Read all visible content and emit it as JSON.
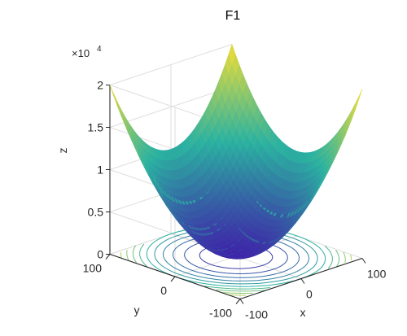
{
  "chart_data": {
    "type": "surface",
    "title": "F1",
    "function": "sum of squares",
    "xlabel": "x",
    "ylabel": "y",
    "zlabel": "z",
    "xlim": [
      -100,
      100
    ],
    "ylim": [
      -100,
      100
    ],
    "zlim": [
      0,
      20000
    ],
    "x_ticks": [
      "-100",
      "0",
      "100"
    ],
    "y_ticks": [
      "-100",
      "0",
      "100"
    ],
    "z_ticks": [
      "0",
      "0.5",
      "1",
      "1.5",
      "2"
    ],
    "z_exponent": {
      "base": "×10",
      "power": "4"
    },
    "contour_projection": true,
    "contour_levels": 12,
    "colormap": "parula",
    "colors": {
      "low": "#3e26a8",
      "mid": "#2bb2a1",
      "high": "#f4de34"
    },
    "grid": true
  }
}
